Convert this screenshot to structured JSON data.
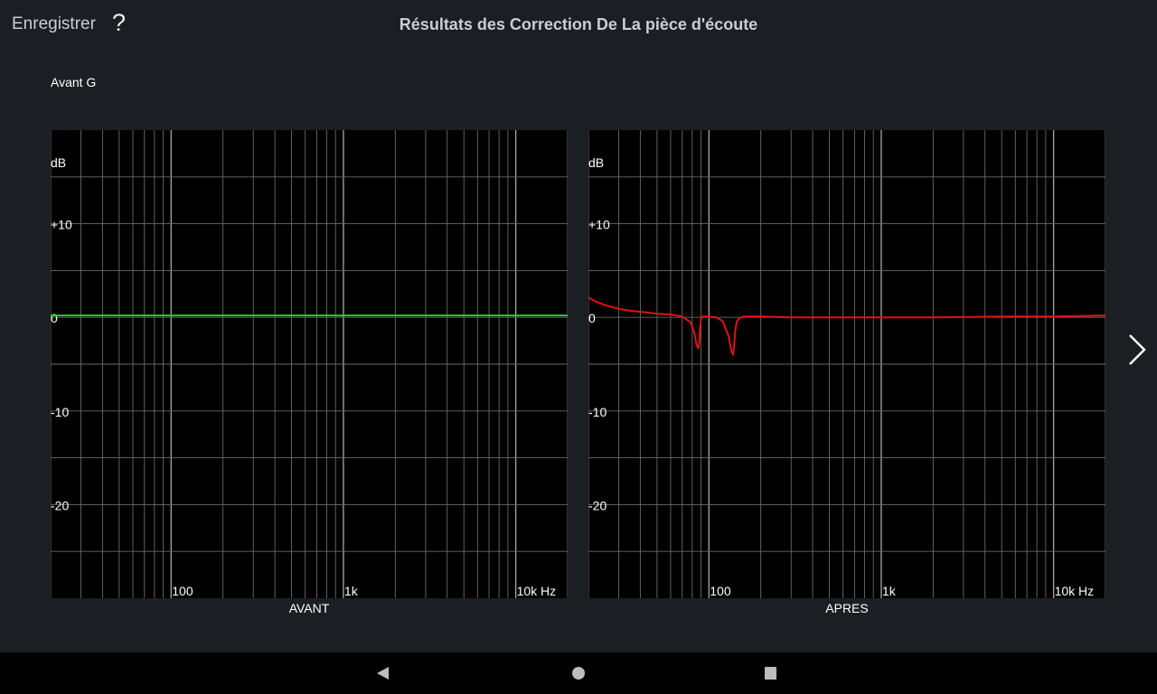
{
  "header": {
    "save_label": "Enregistrer",
    "help_label": "?",
    "title": "Résultats des Correction De La pièce d'écoute"
  },
  "channel_label": "Avant G",
  "colors": {
    "background": "#1b1e22",
    "plot_background": "#000000",
    "grid": "#6a6a6a",
    "before_curve": "#1fd21f",
    "after_curve": "#e01212",
    "navbar": "#000000"
  },
  "icons": {
    "next": "chevron-right-icon",
    "nav_back": "triangle-left-icon",
    "nav_home": "circle-icon",
    "nav_recents": "square-icon"
  },
  "chart_data": [
    {
      "type": "line",
      "title": "AVANT",
      "x_scale": "log",
      "xlim": [
        20,
        20000
      ],
      "ylim": [
        -30,
        20
      ],
      "ylabel": "dB",
      "x_ticks": [
        {
          "value": 100,
          "label": "100"
        },
        {
          "value": 1000,
          "label": "1k"
        },
        {
          "value": 10000,
          "label": "10k Hz"
        }
      ],
      "y_ticks": [
        {
          "value": 10,
          "label": "+10"
        },
        {
          "value": 0,
          "label": "0"
        },
        {
          "value": -10,
          "label": "-10"
        },
        {
          "value": -20,
          "label": "-20"
        }
      ],
      "grid": true,
      "series": [
        {
          "color": "#1fd21f",
          "x": [
            20,
            20000
          ],
          "y": [
            0.2,
            0.2
          ]
        }
      ]
    },
    {
      "type": "line",
      "title": "APRES",
      "x_scale": "log",
      "xlim": [
        20,
        20000
      ],
      "ylim": [
        -30,
        20
      ],
      "ylabel": "dB",
      "x_ticks": [
        {
          "value": 100,
          "label": "100"
        },
        {
          "value": 1000,
          "label": "1k"
        },
        {
          "value": 10000,
          "label": "10k Hz"
        }
      ],
      "y_ticks": [
        {
          "value": 10,
          "label": "+10"
        },
        {
          "value": 0,
          "label": "0"
        },
        {
          "value": -10,
          "label": "-10"
        },
        {
          "value": -20,
          "label": "-20"
        }
      ],
      "grid": true,
      "series": [
        {
          "color": "#e01212",
          "x": [
            20,
            22,
            25,
            30,
            35,
            40,
            50,
            60,
            70,
            78,
            82,
            85,
            87,
            88,
            89,
            90,
            92,
            95,
            100,
            110,
            120,
            130,
            135,
            138,
            140,
            142,
            145,
            150,
            160,
            175,
            200,
            300,
            500,
            1000,
            2000,
            5000,
            10000,
            20000
          ],
          "y": [
            2.1,
            1.7,
            1.3,
            0.9,
            0.7,
            0.6,
            0.4,
            0.3,
            0.1,
            -0.5,
            -1.5,
            -3.0,
            -3.3,
            -2.5,
            -1.0,
            -0.2,
            0.1,
            0.1,
            0.1,
            0.0,
            -0.4,
            -2.0,
            -3.6,
            -4.0,
            -3.2,
            -1.5,
            -0.5,
            -0.1,
            0.1,
            0.1,
            0.1,
            0.0,
            0.0,
            0.0,
            0.0,
            0.1,
            0.1,
            0.2
          ]
        }
      ]
    }
  ]
}
